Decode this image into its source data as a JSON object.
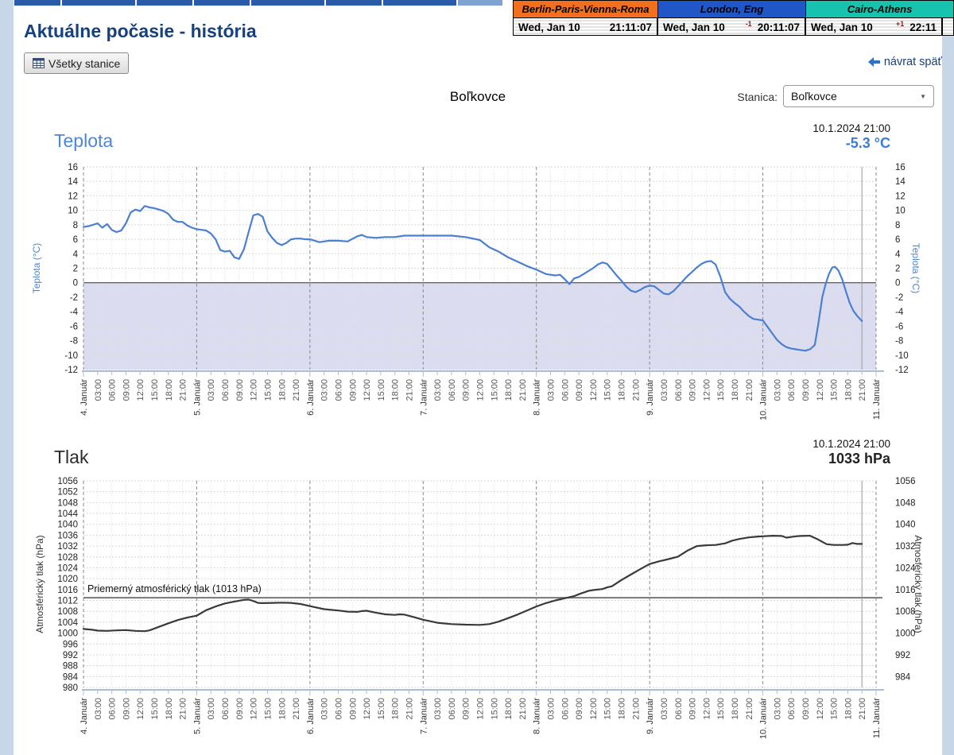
{
  "header": {
    "title": "Aktuálne počasie - história",
    "all_stations_button": "Všetky stanice",
    "back_link": "návrat späť",
    "station_label": "Stanica:",
    "station_value": "Boľkovce",
    "station_title": "Boľkovce"
  },
  "icons": {
    "all_stations": "table-grid-icon",
    "back": "back-arrow-icon",
    "select": "chevron-down-icon"
  },
  "clocks": [
    {
      "label": "Berlin-Paris-Vienna-Roma",
      "bg": "#f2701d",
      "date": "Wed, Jan 10",
      "utc_offset": "",
      "time": "21:11:07"
    },
    {
      "label": "London, Eng",
      "bg": "#1f57c8",
      "date": "Wed, Jan 10",
      "utc_offset": "-1",
      "time": "20:11:07"
    },
    {
      "label": "Cairo-Athens",
      "bg": "#17c3ae",
      "date": "Wed, Jan 10",
      "utc_offset": "+1",
      "time": "22:11"
    }
  ],
  "chart_data": [
    {
      "id": "temperature",
      "type": "line",
      "title": "Teplota",
      "title_color": "#4c86d8",
      "timestamp": "10.1.2024 21:00",
      "current_value": "-5.3 °C",
      "value_color": "#3c7cd4",
      "ylabel": "Teplota (°C)",
      "axis_label_color": "#4c86d8",
      "ylim": [
        -12,
        16
      ],
      "ystep": 2,
      "ystep_right": 2,
      "hours": 168,
      "cursor_hour": 165,
      "line_color": "#4a7fd2",
      "shade_below": 0,
      "shade_color": "#dcdcf0",
      "zero_line": 0,
      "x_days": [
        "4. Január",
        "5. Január",
        "6. Január",
        "7. Január",
        "8. Január",
        "9. Január",
        "10. Január",
        "11. Január"
      ],
      "x_times": [
        "03:00",
        "06:00",
        "09:00",
        "12:00",
        "15:00",
        "18:00",
        "21:00"
      ],
      "series": [
        [
          0,
          7.7
        ],
        [
          1,
          7.8
        ],
        [
          2,
          8.0
        ],
        [
          3,
          8.2
        ],
        [
          4,
          7.6
        ],
        [
          5,
          8.1
        ],
        [
          6,
          7.3
        ],
        [
          7,
          7.0
        ],
        [
          8,
          7.2
        ],
        [
          9,
          8.2
        ],
        [
          10,
          9.7
        ],
        [
          11,
          10.1
        ],
        [
          12,
          9.9
        ],
        [
          13,
          10.6
        ],
        [
          14,
          10.4
        ],
        [
          15,
          10.3
        ],
        [
          16,
          10.1
        ],
        [
          17,
          9.9
        ],
        [
          18,
          9.5
        ],
        [
          19,
          8.7
        ],
        [
          20,
          8.4
        ],
        [
          21,
          8.4
        ],
        [
          22,
          7.9
        ],
        [
          23,
          7.6
        ],
        [
          24,
          7.4
        ],
        [
          26,
          7.2
        ],
        [
          27,
          6.8
        ],
        [
          28,
          6.0
        ],
        [
          29,
          4.5
        ],
        [
          30,
          4.3
        ],
        [
          31,
          4.4
        ],
        [
          32,
          3.5
        ],
        [
          33,
          3.3
        ],
        [
          34,
          4.6
        ],
        [
          35,
          7.0
        ],
        [
          36,
          9.3
        ],
        [
          37,
          9.5
        ],
        [
          38,
          9.1
        ],
        [
          39,
          7.1
        ],
        [
          40,
          6.2
        ],
        [
          41,
          5.5
        ],
        [
          42,
          5.2
        ],
        [
          43,
          5.5
        ],
        [
          44,
          6.0
        ],
        [
          45,
          6.1
        ],
        [
          46,
          6.1
        ],
        [
          47,
          6.0
        ],
        [
          48,
          6.0
        ],
        [
          50,
          5.6
        ],
        [
          52,
          5.8
        ],
        [
          54,
          5.8
        ],
        [
          56,
          5.7
        ],
        [
          58,
          6.4
        ],
        [
          59,
          6.6
        ],
        [
          60,
          6.3
        ],
        [
          62,
          6.2
        ],
        [
          64,
          6.3
        ],
        [
          66,
          6.3
        ],
        [
          68,
          6.5
        ],
        [
          70,
          6.5
        ],
        [
          72,
          6.5
        ],
        [
          75,
          6.5
        ],
        [
          78,
          6.5
        ],
        [
          81,
          6.3
        ],
        [
          84,
          5.9
        ],
        [
          85,
          5.4
        ],
        [
          86,
          4.9
        ],
        [
          88,
          4.3
        ],
        [
          90,
          3.5
        ],
        [
          92,
          2.9
        ],
        [
          94,
          2.3
        ],
        [
          96,
          1.8
        ],
        [
          98,
          1.2
        ],
        [
          100,
          1.0
        ],
        [
          101,
          1.1
        ],
        [
          102,
          0.5
        ],
        [
          103,
          -0.2
        ],
        [
          104,
          0.6
        ],
        [
          105,
          0.8
        ],
        [
          106,
          1.2
        ],
        [
          108,
          2.0
        ],
        [
          109,
          2.5
        ],
        [
          110,
          2.8
        ],
        [
          111,
          2.6
        ],
        [
          112,
          1.8
        ],
        [
          113,
          1.0
        ],
        [
          114,
          0.3
        ],
        [
          115,
          -0.5
        ],
        [
          116,
          -1.1
        ],
        [
          117,
          -1.3
        ],
        [
          118,
          -1.0
        ],
        [
          119,
          -0.6
        ],
        [
          120,
          -0.4
        ],
        [
          121,
          -0.5
        ],
        [
          122,
          -1.0
        ],
        [
          123,
          -1.5
        ],
        [
          124,
          -1.6
        ],
        [
          125,
          -1.2
        ],
        [
          126,
          -0.5
        ],
        [
          127,
          0.2
        ],
        [
          128,
          0.9
        ],
        [
          129,
          1.5
        ],
        [
          130,
          2.1
        ],
        [
          131,
          2.6
        ],
        [
          132,
          2.9
        ],
        [
          133,
          3.0
        ],
        [
          134,
          2.5
        ],
        [
          135,
          0.8
        ],
        [
          136,
          -1.3
        ],
        [
          137,
          -2.2
        ],
        [
          138,
          -2.8
        ],
        [
          139,
          -3.3
        ],
        [
          140,
          -4.0
        ],
        [
          141,
          -4.6
        ],
        [
          142,
          -5.0
        ],
        [
          143,
          -5.1
        ],
        [
          144,
          -5.2
        ],
        [
          145,
          -6.1
        ],
        [
          146,
          -7.0
        ],
        [
          147,
          -7.9
        ],
        [
          148,
          -8.5
        ],
        [
          149,
          -8.9
        ],
        [
          150,
          -9.1
        ],
        [
          151,
          -9.2
        ],
        [
          152,
          -9.3
        ],
        [
          153,
          -9.4
        ],
        [
          154,
          -9.2
        ],
        [
          155,
          -8.6
        ],
        [
          155.8,
          -5.5
        ],
        [
          156.6,
          -2.0
        ],
        [
          157.3,
          -0.2
        ],
        [
          158,
          1.2
        ],
        [
          158.7,
          2.1
        ],
        [
          159.3,
          2.2
        ],
        [
          160,
          1.7
        ],
        [
          160.8,
          0.5
        ],
        [
          161.6,
          -1.2
        ],
        [
          162.4,
          -2.8
        ],
        [
          163.2,
          -3.9
        ],
        [
          164,
          -4.6
        ],
        [
          165,
          -5.3
        ]
      ]
    },
    {
      "id": "pressure",
      "type": "line",
      "title": "Tlak",
      "title_color": "#2b2b2b",
      "timestamp": "10.1.2024 21:00",
      "current_value": "1033 hPa",
      "value_color": "#222222",
      "ylabel": "Atmosférický tlak (hPa)",
      "axis_label_color": "#333333",
      "ylim": [
        980,
        1056
      ],
      "ystep": 4,
      "ystep_right": 8,
      "hours": 168,
      "cursor_hour": 165,
      "line_color": "#3a3a3a",
      "ref_line": {
        "value": 1013,
        "label": "Priemerný atmosférický tlak (1013 hPa)"
      },
      "x_days": [
        "4. Január",
        "5. Január",
        "6. Január",
        "7. Január",
        "8. Január",
        "9. Január",
        "10. Január",
        "11. Január"
      ],
      "x_times": [
        "03:00",
        "06:00",
        "09:00",
        "12:00",
        "15:00",
        "18:00",
        "21:00"
      ],
      "series": [
        [
          0,
          1001.5
        ],
        [
          2,
          1001.2
        ],
        [
          3,
          1000.9
        ],
        [
          5,
          1000.8
        ],
        [
          7,
          1001.0
        ],
        [
          9,
          1001.1
        ],
        [
          11,
          1000.8
        ],
        [
          13,
          1000.7
        ],
        [
          14,
          1001.0
        ],
        [
          16,
          1002.3
        ],
        [
          18,
          1003.6
        ],
        [
          20,
          1004.8
        ],
        [
          22,
          1005.7
        ],
        [
          24,
          1006.4
        ],
        [
          26,
          1008.4
        ],
        [
          28,
          1009.8
        ],
        [
          30,
          1010.9
        ],
        [
          32,
          1011.6
        ],
        [
          34,
          1012.2
        ],
        [
          35,
          1012.3
        ],
        [
          36,
          1011.8
        ],
        [
          37,
          1011.1
        ],
        [
          38,
          1011.0
        ],
        [
          40,
          1011.1
        ],
        [
          42,
          1011.2
        ],
        [
          44,
          1011.1
        ],
        [
          46,
          1010.7
        ],
        [
          48,
          1009.9
        ],
        [
          51,
          1008.8
        ],
        [
          54,
          1008.3
        ],
        [
          56,
          1007.9
        ],
        [
          58,
          1007.8
        ],
        [
          59,
          1008.1
        ],
        [
          60,
          1008.2
        ],
        [
          62,
          1007.5
        ],
        [
          64,
          1006.9
        ],
        [
          66,
          1006.7
        ],
        [
          67,
          1006.9
        ],
        [
          68,
          1006.8
        ],
        [
          70,
          1005.9
        ],
        [
          72,
          1004.9
        ],
        [
          75,
          1003.8
        ],
        [
          78,
          1003.3
        ],
        [
          81,
          1003.1
        ],
        [
          84,
          1003.0
        ],
        [
          86,
          1003.3
        ],
        [
          88,
          1004.2
        ],
        [
          90,
          1005.5
        ],
        [
          92,
          1006.8
        ],
        [
          94,
          1008.3
        ],
        [
          96,
          1009.8
        ],
        [
          98,
          1011.0
        ],
        [
          100,
          1012.0
        ],
        [
          102,
          1012.8
        ],
        [
          104,
          1013.6
        ],
        [
          105,
          1014.3
        ],
        [
          107,
          1015.5
        ],
        [
          108,
          1015.8
        ],
        [
          110,
          1016.2
        ],
        [
          111,
          1016.8
        ],
        [
          112,
          1017.2
        ],
        [
          114,
          1019.5
        ],
        [
          116,
          1021.5
        ],
        [
          118,
          1023.5
        ],
        [
          120,
          1025.4
        ],
        [
          122,
          1026.4
        ],
        [
          124,
          1027.2
        ],
        [
          126,
          1028.1
        ],
        [
          128,
          1030.3
        ],
        [
          130,
          1032.0
        ],
        [
          132,
          1032.3
        ],
        [
          134,
          1032.4
        ],
        [
          136,
          1033.0
        ],
        [
          137.5,
          1034.0
        ],
        [
          139,
          1034.6
        ],
        [
          141,
          1035.2
        ],
        [
          143,
          1035.5
        ],
        [
          144,
          1035.6
        ],
        [
          146,
          1035.8
        ],
        [
          148,
          1035.7
        ],
        [
          149,
          1035.1
        ],
        [
          151,
          1035.6
        ],
        [
          152,
          1035.7
        ],
        [
          154,
          1035.8
        ],
        [
          155.5,
          1034.6
        ],
        [
          157.5,
          1032.7
        ],
        [
          159,
          1032.4
        ],
        [
          160,
          1032.4
        ],
        [
          161,
          1032.4
        ],
        [
          162,
          1032.5
        ],
        [
          163,
          1033.1
        ],
        [
          164,
          1032.8
        ],
        [
          165,
          1032.8
        ]
      ]
    }
  ]
}
